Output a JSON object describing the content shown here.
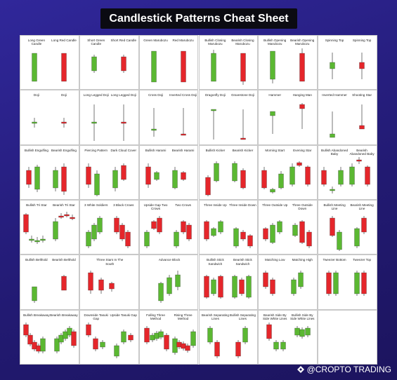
{
  "title": "Candlestick Patterns Cheat Sheet",
  "cells": [
    {
      "labels": [
        "Long Green Candle",
        "Long Red Candle"
      ]
    },
    {
      "labels": [
        "Short Green Candle",
        "Short Red Candle"
      ]
    },
    {
      "labels": [
        "Green Marubozu",
        "Red Marubozu"
      ]
    },
    {
      "labels": [
        "Bullish Closing Marubozu",
        "Bearish Closing Marubozu"
      ]
    },
    {
      "labels": [
        "Bullish Opening Marubozu",
        "Bearish Opening Marubozu"
      ]
    },
    {
      "labels": [
        "Spinning Top",
        "Spinning Top"
      ]
    },
    {
      "labels": [
        "Doji",
        "Doji"
      ]
    },
    {
      "labels": [
        "Long Legged Doji",
        "Long Legged Doji"
      ]
    },
    {
      "labels": [
        "Cross Doji",
        "Inverted Cross Doji"
      ]
    },
    {
      "labels": [
        "Dragonfly Doji",
        "Gravestone Doji"
      ]
    },
    {
      "labels": [
        "Hammer",
        "Hanging Man"
      ]
    },
    {
      "labels": [
        "Inverted Hammer",
        "Shooting Star"
      ]
    },
    {
      "labels": [
        "Bullish Engulfing",
        "Bearish Engulfing"
      ]
    },
    {
      "labels": [
        "Piercing Pattern",
        "Dark Cloud Cover"
      ]
    },
    {
      "labels": [
        "Bullish Harami",
        "Bearish Harami"
      ]
    },
    {
      "labels": [
        "Bullish Kicker",
        "Bearish Kicker"
      ]
    },
    {
      "labels": [
        "Morning Start",
        "Evening Star"
      ]
    },
    {
      "labels": [
        "Bullish Abandoned Baby",
        "Bearish Abandoned Baby"
      ]
    },
    {
      "labels": [
        "Bullish Tri Star",
        "Bearish Tri Star"
      ]
    },
    {
      "labels": [
        "3 White Soldiers",
        "3 Black Crows"
      ]
    },
    {
      "labels": [
        "Upside Gap Two Crows",
        "Two Crows"
      ]
    },
    {
      "labels": [
        "Three Inside Up",
        "Three Inside Down"
      ]
    },
    {
      "labels": [
        "Three Outside Up",
        "Three Outside Down"
      ]
    },
    {
      "labels": [
        "Bullish Meeting Line",
        "Bearish Meeting Line"
      ]
    },
    {
      "labels": [
        "Bullish Belthold",
        "Bearish Belthold"
      ]
    },
    {
      "labels": [
        "Three Stars In The South"
      ]
    },
    {
      "labels": [
        "Advance Block"
      ]
    },
    {
      "labels": [
        "Bullish Stick Sandwich",
        "Bearish Stick Sandwich"
      ]
    },
    {
      "labels": [
        "Matching Low",
        "Matching High"
      ]
    },
    {
      "labels": [
        "Tweezer Bottom",
        "Tweezer Top"
      ]
    },
    {
      "labels": [
        "Bullish Breakaway",
        "Bearish Breakaway"
      ]
    },
    {
      "labels": [
        "Downside Tasuki Gap",
        "Upside Tasuki Gap"
      ]
    },
    {
      "labels": [
        "Falling Three Method",
        "Rising Three Method"
      ]
    },
    {
      "labels": [
        "Bearish Separating Lines",
        "Bullish Separating Lines"
      ]
    },
    {
      "labels": [
        "Bearish Side By Side White Lines",
        "Bullish Side By Side White Lines"
      ]
    }
  ],
  "watermark": "@CROPTO TRADING"
}
